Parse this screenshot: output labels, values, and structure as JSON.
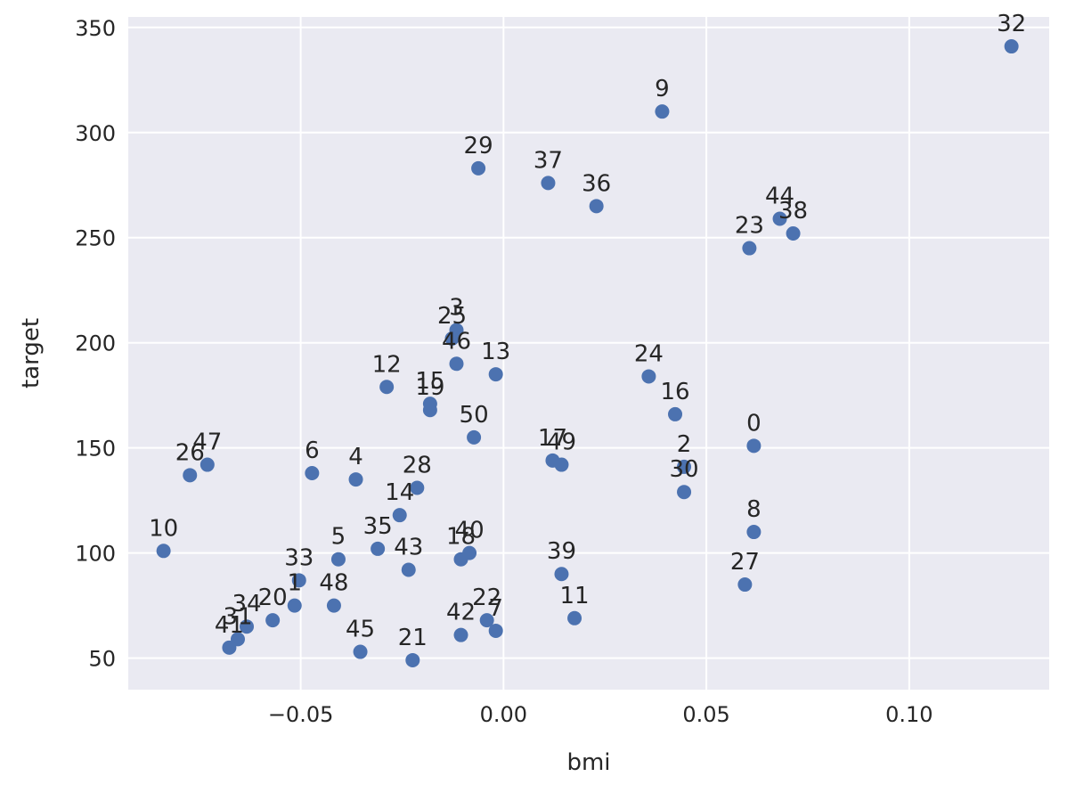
{
  "chart_data": {
    "type": "scatter",
    "xlabel": "bmi",
    "ylabel": "target",
    "xlim": [
      -0.0925,
      0.1345
    ],
    "ylim": [
      35,
      355
    ],
    "x_ticks": [
      -0.05,
      0.0,
      0.05,
      0.1
    ],
    "x_tick_labels": [
      "−0.05",
      "0.00",
      "0.05",
      "0.10"
    ],
    "y_ticks": [
      50,
      100,
      150,
      200,
      250,
      300,
      350
    ],
    "y_tick_labels": [
      "50",
      "100",
      "150",
      "200",
      "250",
      "300",
      "350"
    ],
    "grid": true,
    "point_color": "#4c72b0",
    "background_color": "#eaeaf2",
    "points": [
      {
        "label": "0",
        "x": 0.0617,
        "y": 151
      },
      {
        "label": "1",
        "x": -0.0515,
        "y": 75
      },
      {
        "label": "2",
        "x": 0.0445,
        "y": 141
      },
      {
        "label": "3",
        "x": -0.0116,
        "y": 206
      },
      {
        "label": "4",
        "x": -0.0364,
        "y": 135
      },
      {
        "label": "5",
        "x": -0.0407,
        "y": 97
      },
      {
        "label": "6",
        "x": -0.0472,
        "y": 138
      },
      {
        "label": "7",
        "x": -0.0019,
        "y": 63
      },
      {
        "label": "8",
        "x": 0.0617,
        "y": 110
      },
      {
        "label": "9",
        "x": 0.0391,
        "y": 310
      },
      {
        "label": "10",
        "x": -0.0838,
        "y": 101
      },
      {
        "label": "11",
        "x": 0.0175,
        "y": 69
      },
      {
        "label": "12",
        "x": -0.0288,
        "y": 179
      },
      {
        "label": "13",
        "x": -0.0019,
        "y": 185
      },
      {
        "label": "14",
        "x": -0.0256,
        "y": 118
      },
      {
        "label": "15",
        "x": -0.0181,
        "y": 171
      },
      {
        "label": "16",
        "x": 0.0423,
        "y": 166
      },
      {
        "label": "17",
        "x": 0.0121,
        "y": 144
      },
      {
        "label": "18",
        "x": -0.0105,
        "y": 97
      },
      {
        "label": "19",
        "x": -0.0181,
        "y": 168
      },
      {
        "label": "20",
        "x": -0.0569,
        "y": 68
      },
      {
        "label": "21",
        "x": -0.0224,
        "y": 49
      },
      {
        "label": "22",
        "x": -0.0041,
        "y": 68
      },
      {
        "label": "23",
        "x": 0.0606,
        "y": 245
      },
      {
        "label": "24",
        "x": 0.0358,
        "y": 184
      },
      {
        "label": "25",
        "x": -0.0127,
        "y": 202
      },
      {
        "label": "26",
        "x": -0.0773,
        "y": 137
      },
      {
        "label": "27",
        "x": 0.0595,
        "y": 85
      },
      {
        "label": "28",
        "x": -0.0213,
        "y": 131
      },
      {
        "label": "29",
        "x": -0.0062,
        "y": 283
      },
      {
        "label": "30",
        "x": 0.0445,
        "y": 129
      },
      {
        "label": "31",
        "x": -0.0655,
        "y": 59
      },
      {
        "label": "32",
        "x": 0.1252,
        "y": 341
      },
      {
        "label": "33",
        "x": -0.0504,
        "y": 87
      },
      {
        "label": "34",
        "x": -0.0633,
        "y": 65
      },
      {
        "label": "35",
        "x": -0.031,
        "y": 102
      },
      {
        "label": "36",
        "x": 0.0229,
        "y": 265
      },
      {
        "label": "37",
        "x": 0.011,
        "y": 276
      },
      {
        "label": "38",
        "x": 0.0714,
        "y": 252
      },
      {
        "label": "39",
        "x": 0.0143,
        "y": 90
      },
      {
        "label": "40",
        "x": -0.0084,
        "y": 100
      },
      {
        "label": "41",
        "x": -0.0676,
        "y": 55
      },
      {
        "label": "42",
        "x": -0.0105,
        "y": 61
      },
      {
        "label": "43",
        "x": -0.0234,
        "y": 92
      },
      {
        "label": "44",
        "x": 0.0681,
        "y": 259
      },
      {
        "label": "45",
        "x": -0.0353,
        "y": 53
      },
      {
        "label": "46",
        "x": -0.0116,
        "y": 190
      },
      {
        "label": "47",
        "x": -0.073,
        "y": 142
      },
      {
        "label": "48",
        "x": -0.0418,
        "y": 75
      },
      {
        "label": "49",
        "x": 0.0143,
        "y": 142
      },
      {
        "label": "50",
        "x": -0.0073,
        "y": 155
      }
    ]
  }
}
